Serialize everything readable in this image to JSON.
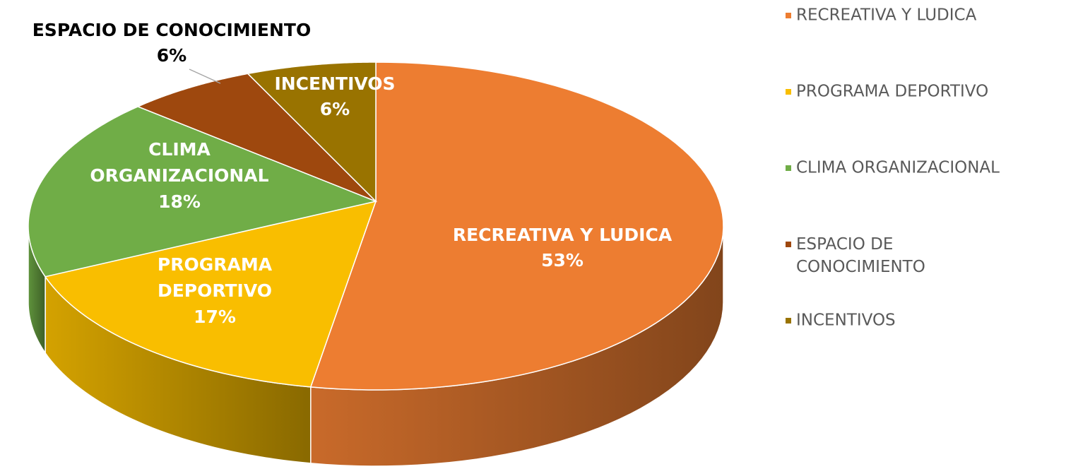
{
  "chart_data": {
    "type": "pie",
    "categories": [
      "RECREATIVA Y LUDICA",
      "PROGRAMA DEPORTIVO",
      "CLIMA ORGANIZACIONAL",
      "ESPACIO DE CONOCIMIENTO",
      "INCENTIVOS"
    ],
    "values": [
      53,
      17,
      18,
      6,
      6
    ],
    "value_labels": [
      "53%",
      "17%",
      "18%",
      "6%",
      "6%"
    ],
    "colors": [
      "#ED7D31",
      "#F9BE00",
      "#70AD47",
      "#9E480E",
      "#997300"
    ],
    "legend": "right"
  }
}
